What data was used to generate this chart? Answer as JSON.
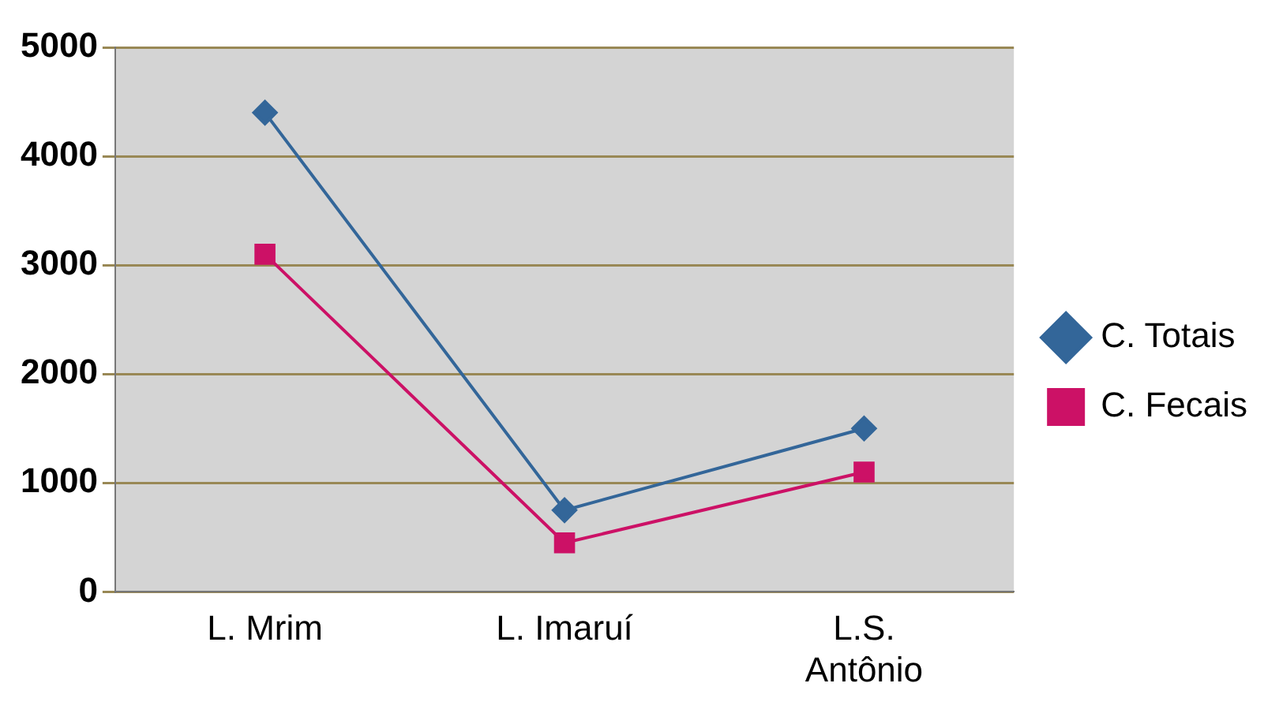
{
  "chart_data": {
    "type": "line",
    "categories": [
      "L. Mrim",
      "L. Imaruí",
      "L.S. Antônio"
    ],
    "series": [
      {
        "name": "C. Totais",
        "color": "#336699",
        "marker": "diamond",
        "values": [
          4400,
          750,
          1500
        ]
      },
      {
        "name": "C. Fecais",
        "color": "#cc1166",
        "marker": "square",
        "values": [
          3100,
          450,
          1100
        ]
      }
    ],
    "ylim": [
      0,
      5000
    ],
    "yticks": [
      0,
      1000,
      2000,
      3000,
      4000,
      5000
    ],
    "grid": "y",
    "legend": "right"
  }
}
